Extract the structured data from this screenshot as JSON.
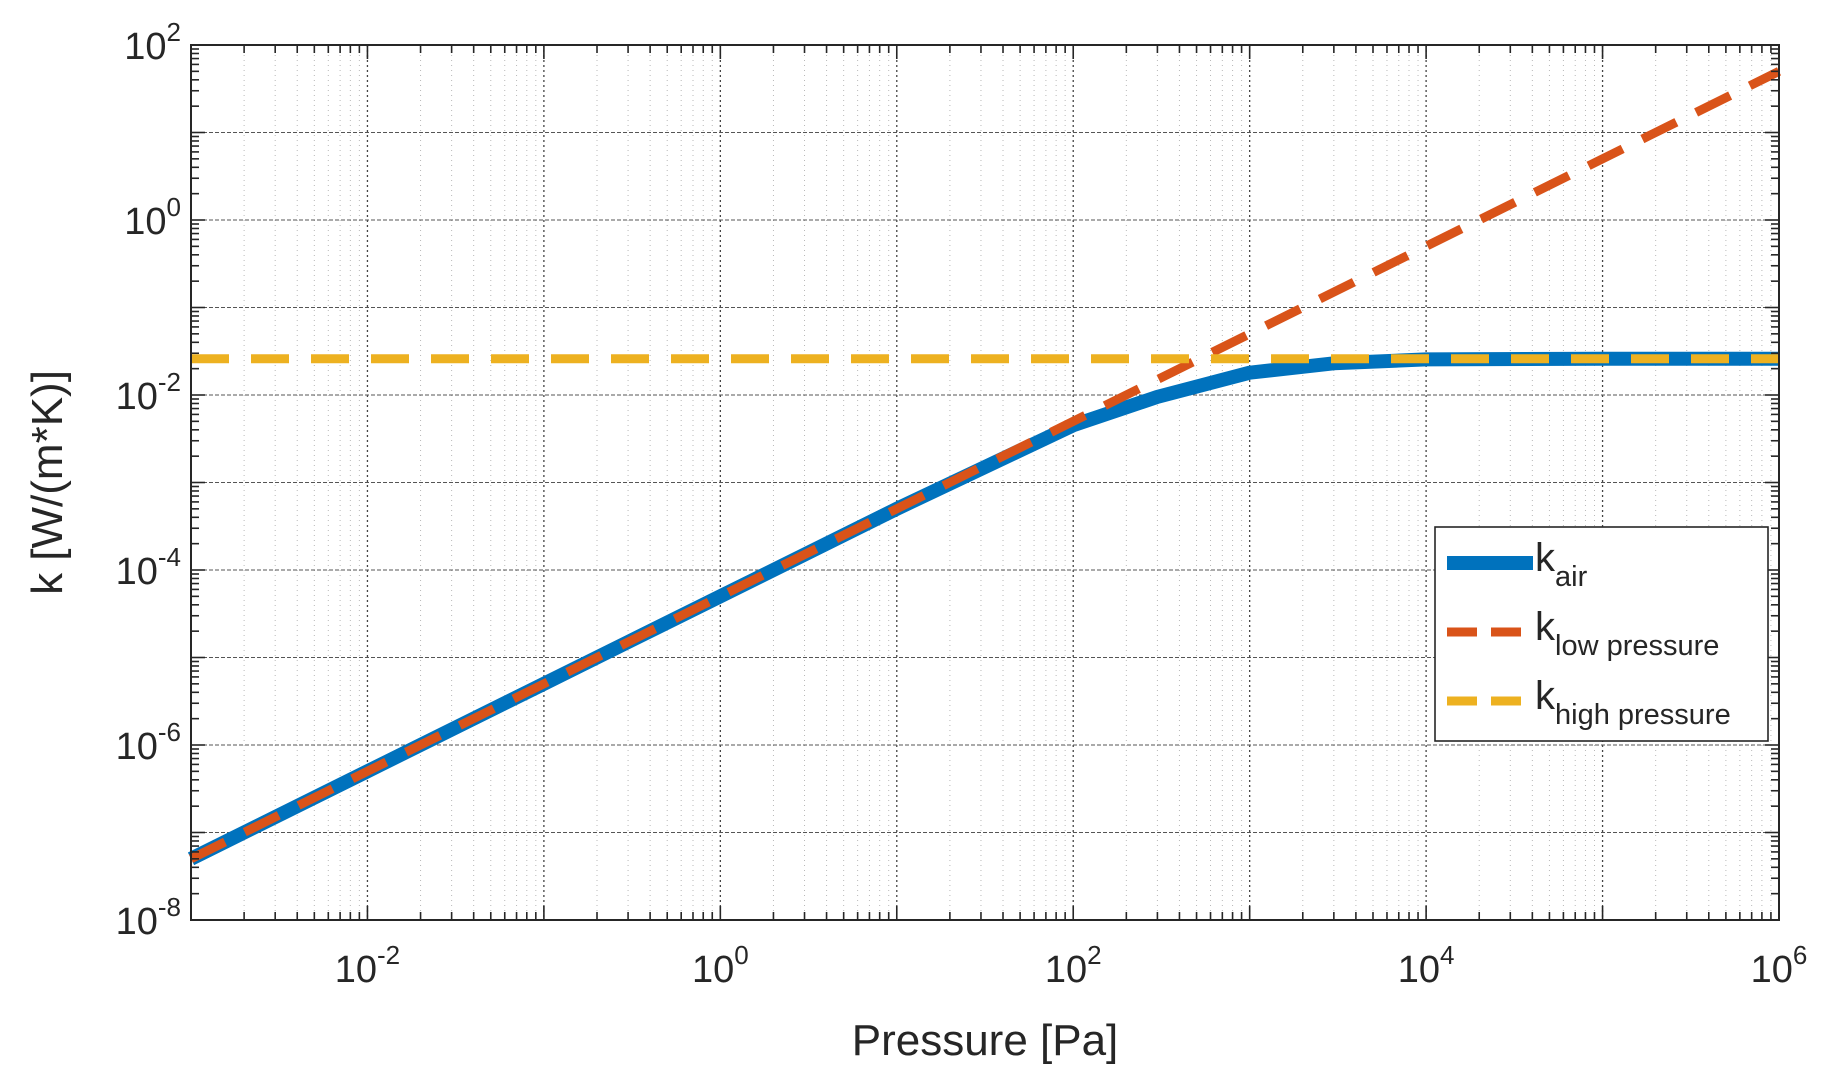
{
  "chart_data": {
    "type": "line",
    "xscale": "log",
    "yscale": "log",
    "xlabel": "Pressure [Pa]",
    "ylabel": "k [W/(m*K)]",
    "xlim": [
      0.001,
      1000000
    ],
    "ylim": [
      1e-08,
      100
    ],
    "grid": true,
    "x_ticks": [
      {
        "value": 0.01,
        "base": "10",
        "exp": "-2"
      },
      {
        "value": 1,
        "base": "10",
        "exp": "0"
      },
      {
        "value": 100,
        "base": "10",
        "exp": "2"
      },
      {
        "value": 10000,
        "base": "10",
        "exp": "4"
      },
      {
        "value": 1000000,
        "base": "10",
        "exp": "6"
      }
    ],
    "y_ticks": [
      {
        "value": 1e-08,
        "base": "10",
        "exp": "-8"
      },
      {
        "value": 1e-06,
        "base": "10",
        "exp": "-6"
      },
      {
        "value": 0.0001,
        "base": "10",
        "exp": "-4"
      },
      {
        "value": 0.01,
        "base": "10",
        "exp": "-2"
      },
      {
        "value": 1,
        "base": "10",
        "exp": "0"
      },
      {
        "value": 100,
        "base": "10",
        "exp": "2"
      }
    ],
    "legend_position": "right",
    "series": [
      {
        "name": "k_air",
        "label_main": "k",
        "label_sub": "air",
        "style": "solid",
        "color": "#0072BD",
        "x": [
          0.001,
          0.01,
          0.1,
          1,
          10,
          100,
          300,
          1000,
          3000,
          10000,
          100000,
          1000000
        ],
        "y": [
          5e-08,
          5e-07,
          5e-06,
          5e-05,
          0.0005,
          0.0045,
          0.0095,
          0.018,
          0.023,
          0.0255,
          0.026,
          0.026
        ]
      },
      {
        "name": "k_low pressure",
        "label_main": "k",
        "label_sub": "low pressure",
        "style": "dashed",
        "color": "#D95319",
        "x": [
          0.001,
          1000000
        ],
        "y": [
          5e-08,
          50
        ]
      },
      {
        "name": "k_high pressure",
        "label_main": "k",
        "label_sub": "high pressure",
        "style": "dashed",
        "color": "#EDB120",
        "x": [
          0.001,
          1000000
        ],
        "y": [
          0.026,
          0.026
        ]
      }
    ]
  }
}
